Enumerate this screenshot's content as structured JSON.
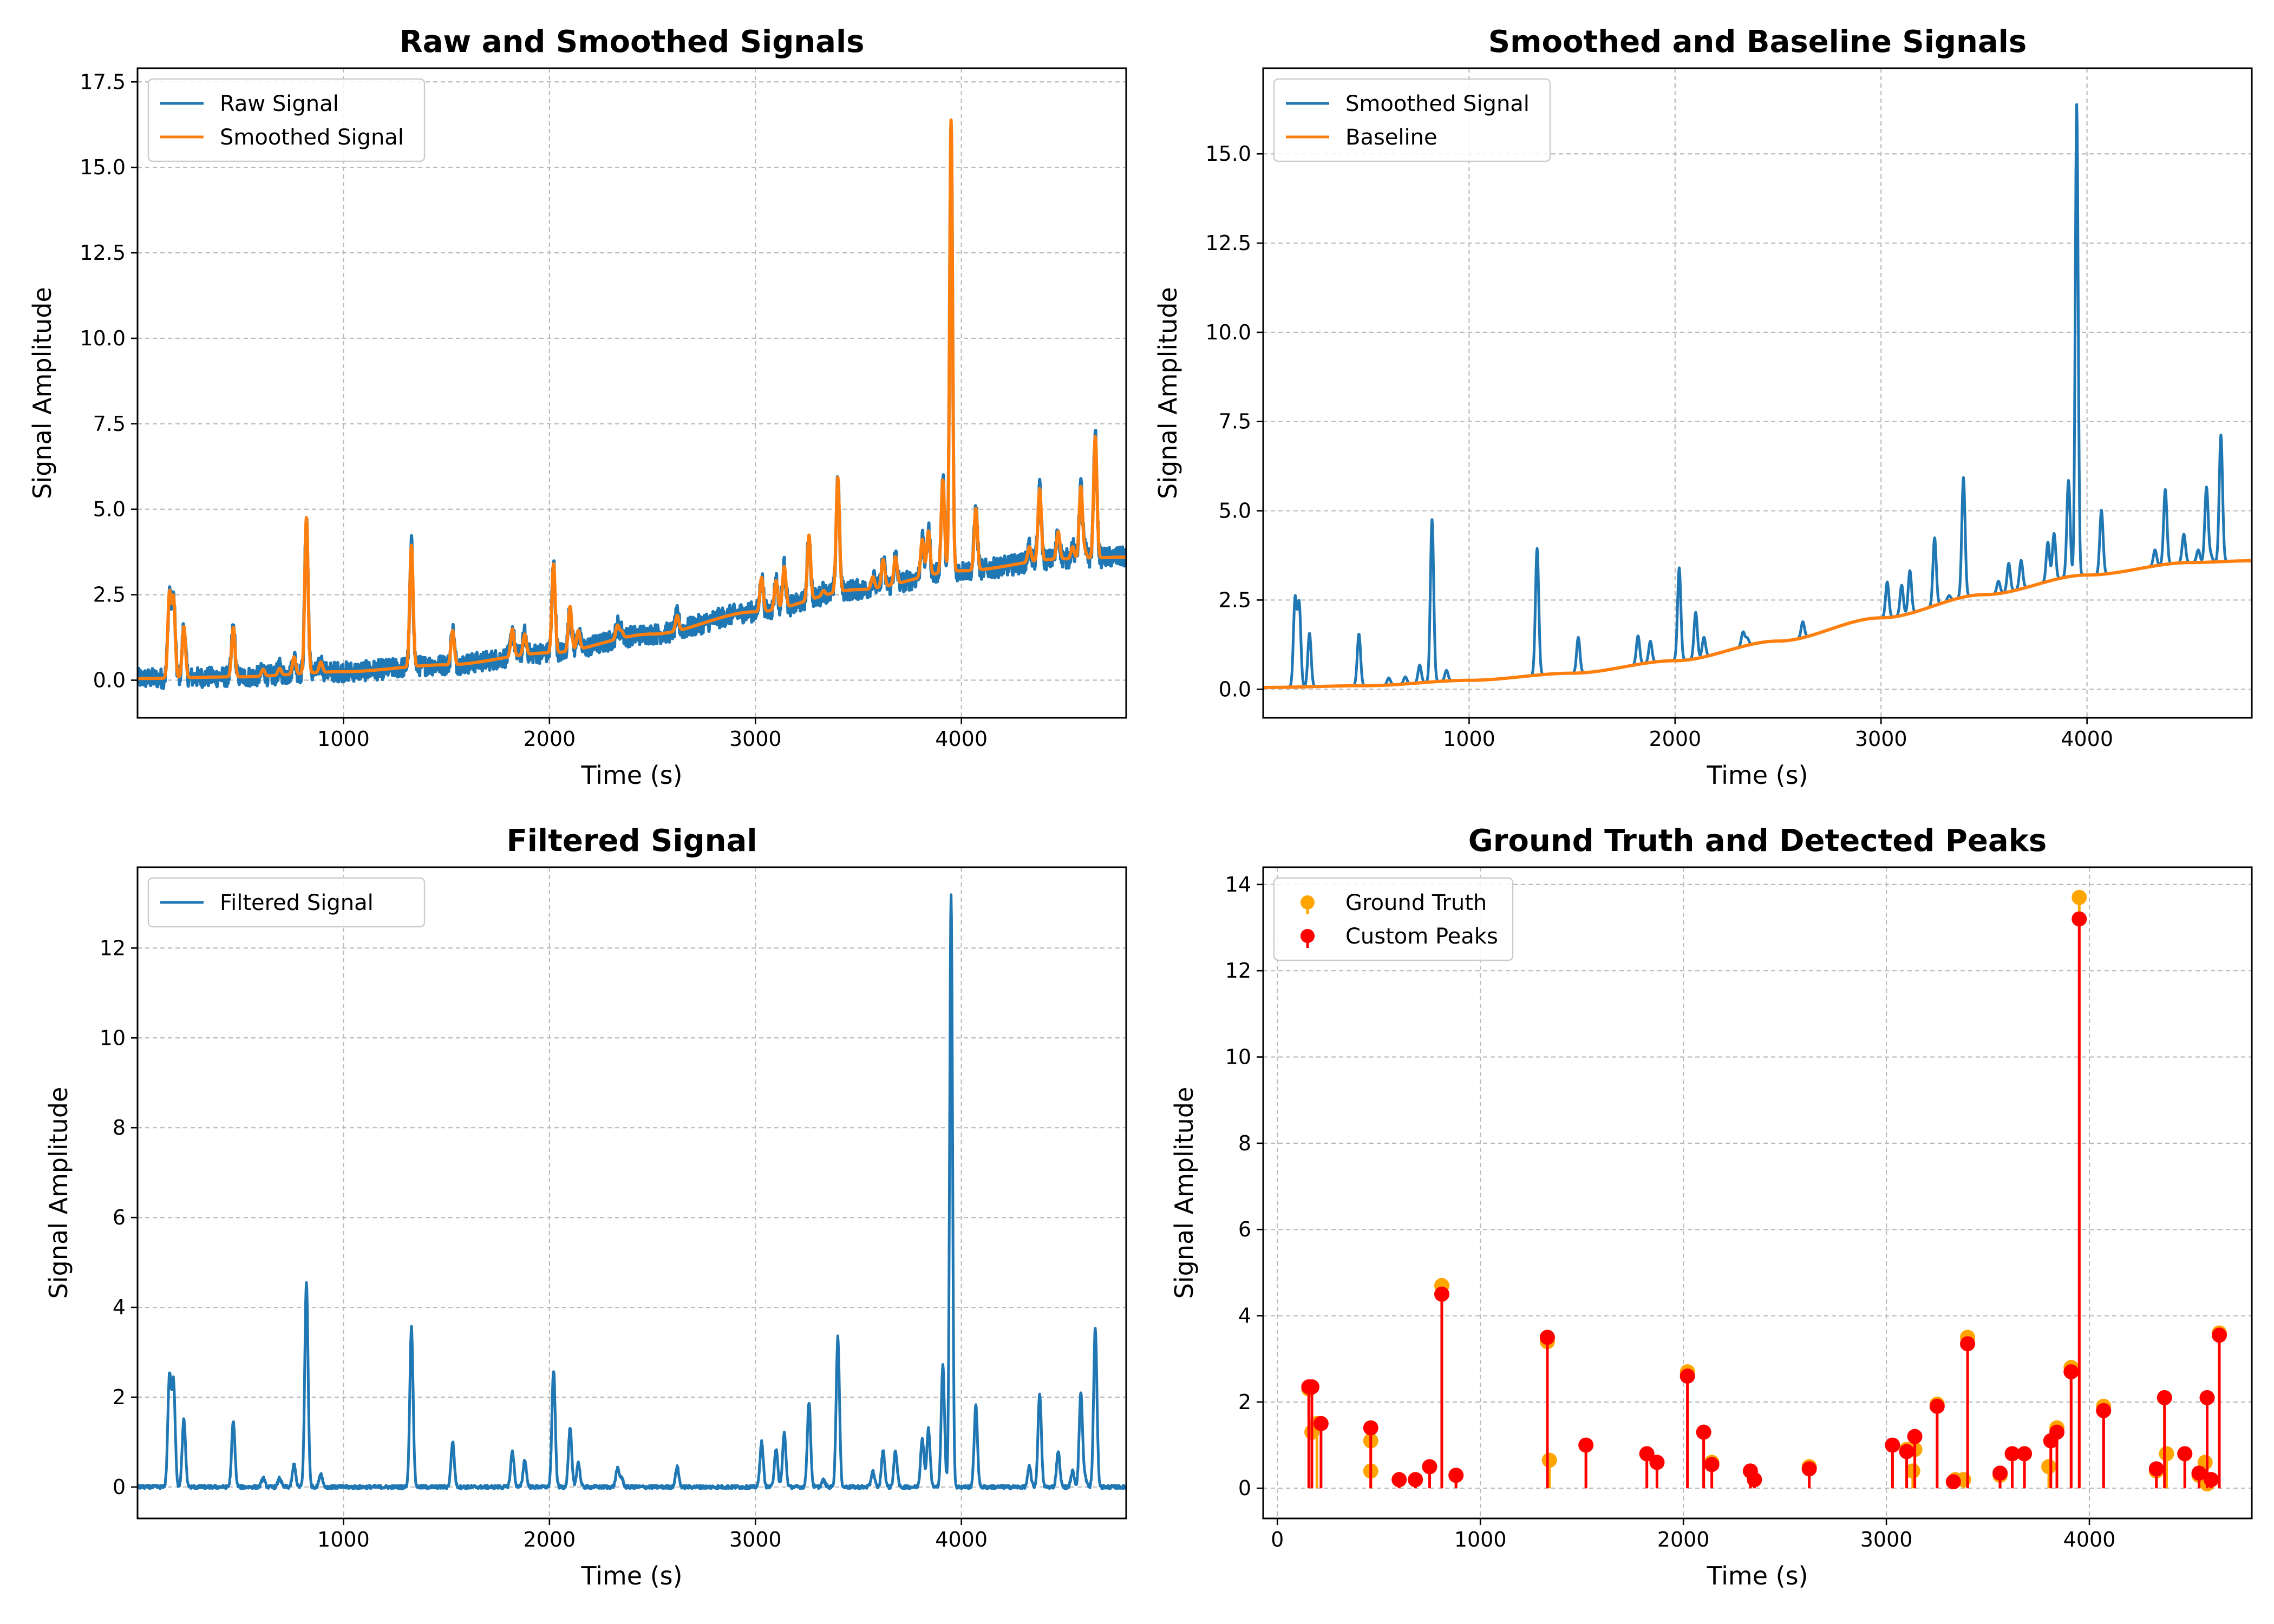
{
  "chart_data": [
    {
      "type": "line",
      "title": "Raw and Smoothed Signals",
      "xlabel": "Time (s)",
      "ylabel": "Signal Amplitude",
      "xlim": [
        0,
        4800
      ],
      "ylim": [
        -1.1,
        17.9
      ],
      "xticks": [
        1000,
        2000,
        3000,
        4000
      ],
      "yticks": [
        0.0,
        2.5,
        5.0,
        7.5,
        10.0,
        12.5,
        15.0,
        17.5
      ],
      "ytick_decimals": 1,
      "grid": true,
      "legend": "top-left",
      "series": [
        {
          "name": "Raw Signal",
          "color": "#1f77b4",
          "noise_band": 0.3
        },
        {
          "name": "Smoothed Signal",
          "color": "#ff7f0e"
        }
      ]
    },
    {
      "type": "line",
      "title": "Smoothed and Baseline Signals",
      "xlabel": "Time (s)",
      "ylabel": "Signal Amplitude",
      "xlim": [
        0,
        4800
      ],
      "ylim": [
        -0.8,
        17.4
      ],
      "xticks": [
        1000,
        2000,
        3000,
        4000
      ],
      "yticks": [
        0.0,
        2.5,
        5.0,
        7.5,
        10.0,
        12.5,
        15.0
      ],
      "ytick_decimals": 1,
      "grid": true,
      "legend": "top-left",
      "series": [
        {
          "name": "Smoothed Signal",
          "color": "#1f77b4"
        },
        {
          "name": "Baseline",
          "color": "#ff7f0e"
        }
      ]
    },
    {
      "type": "line",
      "title": "Filtered Signal",
      "xlabel": "Time (s)",
      "ylabel": "Signal Amplitude",
      "xlim": [
        0,
        4800
      ],
      "ylim": [
        -0.7,
        13.8
      ],
      "xticks": [
        1000,
        2000,
        3000,
        4000
      ],
      "yticks": [
        0,
        2,
        4,
        6,
        8,
        10,
        12
      ],
      "ytick_decimals": 0,
      "grid": true,
      "legend": "top-left",
      "series": [
        {
          "name": "Filtered Signal",
          "color": "#1f77b4"
        }
      ]
    },
    {
      "type": "scatter",
      "title": "Ground Truth and Detected Peaks",
      "xlabel": "Time (s)",
      "ylabel": "Signal Amplitude",
      "xlim": [
        -70,
        4800
      ],
      "ylim": [
        -0.7,
        14.4
      ],
      "xticks": [
        0,
        1000,
        2000,
        3000,
        4000
      ],
      "yticks": [
        0,
        2,
        4,
        6,
        8,
        10,
        12,
        14
      ],
      "ytick_decimals": 0,
      "grid": true,
      "legend": "top-left",
      "series": [
        {
          "name": "Ground Truth",
          "color": "#ffa500"
        },
        {
          "name": "Custom Peaks",
          "color": "#ff0000"
        }
      ],
      "ground_truth_points": [
        [
          155,
          2.3
        ],
        [
          170,
          1.3
        ],
        [
          195,
          1.5
        ],
        [
          460,
          1.1
        ],
        [
          460,
          0.4
        ],
        [
          600,
          0.2
        ],
        [
          680,
          0.2
        ],
        [
          750,
          0.5
        ],
        [
          810,
          4.7
        ],
        [
          880,
          0.3
        ],
        [
          1330,
          3.4
        ],
        [
          1340,
          0.65
        ],
        [
          1520,
          1.0
        ],
        [
          1820,
          0.8
        ],
        [
          1870,
          0.6
        ],
        [
          2020,
          2.7
        ],
        [
          2100,
          1.3
        ],
        [
          2140,
          0.6
        ],
        [
          2330,
          0.4
        ],
        [
          2350,
          0.2
        ],
        [
          2620,
          0.5
        ],
        [
          3030,
          1.0
        ],
        [
          3100,
          0.9
        ],
        [
          3130,
          0.4
        ],
        [
          3140,
          0.9
        ],
        [
          3250,
          1.95
        ],
        [
          3340,
          0.2
        ],
        [
          3380,
          0.2
        ],
        [
          3400,
          3.5
        ],
        [
          3560,
          0.3
        ],
        [
          3620,
          0.8
        ],
        [
          3680,
          0.8
        ],
        [
          3800,
          0.5
        ],
        [
          3810,
          1.1
        ],
        [
          3840,
          1.4
        ],
        [
          3910,
          2.8
        ],
        [
          3950,
          13.7
        ],
        [
          4070,
          1.9
        ],
        [
          4330,
          0.4
        ],
        [
          4370,
          2.1
        ],
        [
          4380,
          0.8
        ],
        [
          4470,
          0.8
        ],
        [
          4540,
          0.3
        ],
        [
          4570,
          0.6
        ],
        [
          4580,
          0.1
        ],
        [
          4600,
          0.2
        ],
        [
          4640,
          3.6
        ]
      ],
      "custom_peaks": [
        [
          155,
          2.35
        ],
        [
          170,
          2.35
        ],
        [
          215,
          1.5
        ],
        [
          460,
          1.4
        ],
        [
          600,
          0.2
        ],
        [
          680,
          0.2
        ],
        [
          750,
          0.5
        ],
        [
          810,
          4.5
        ],
        [
          880,
          0.3
        ],
        [
          1330,
          3.5
        ],
        [
          1520,
          1.0
        ],
        [
          1820,
          0.8
        ],
        [
          1870,
          0.6
        ],
        [
          2020,
          2.6
        ],
        [
          2100,
          1.3
        ],
        [
          2140,
          0.55
        ],
        [
          2330,
          0.4
        ],
        [
          2350,
          0.2
        ],
        [
          2620,
          0.45
        ],
        [
          3030,
          1.0
        ],
        [
          3100,
          0.85
        ],
        [
          3140,
          1.2
        ],
        [
          3250,
          1.9
        ],
        [
          3330,
          0.15
        ],
        [
          3400,
          3.35
        ],
        [
          3560,
          0.35
        ],
        [
          3620,
          0.8
        ],
        [
          3680,
          0.8
        ],
        [
          3810,
          1.1
        ],
        [
          3840,
          1.3
        ],
        [
          3910,
          2.7
        ],
        [
          3950,
          13.2
        ],
        [
          4070,
          1.8
        ],
        [
          4330,
          0.45
        ],
        [
          4370,
          2.1
        ],
        [
          4470,
          0.8
        ],
        [
          4540,
          0.35
        ],
        [
          4580,
          2.1
        ],
        [
          4600,
          0.2
        ],
        [
          4640,
          3.55
        ]
      ]
    }
  ],
  "peaks": [
    [
      155,
      2.45
    ],
    [
      175,
      2.3
    ],
    [
      225,
      1.5
    ],
    [
      465,
      1.45
    ],
    [
      610,
      0.2
    ],
    [
      690,
      0.2
    ],
    [
      760,
      0.5
    ],
    [
      820,
      4.55
    ],
    [
      890,
      0.3
    ],
    [
      1330,
      3.55
    ],
    [
      1530,
      1.0
    ],
    [
      1820,
      0.8
    ],
    [
      1880,
      0.6
    ],
    [
      2020,
      2.6
    ],
    [
      2100,
      1.3
    ],
    [
      2140,
      0.55
    ],
    [
      2330,
      0.4
    ],
    [
      2350,
      0.2
    ],
    [
      2620,
      0.45
    ],
    [
      3030,
      1.0
    ],
    [
      3100,
      0.85
    ],
    [
      3140,
      1.2
    ],
    [
      3260,
      1.9
    ],
    [
      3330,
      0.15
    ],
    [
      3400,
      3.35
    ],
    [
      3570,
      0.35
    ],
    [
      3620,
      0.8
    ],
    [
      3680,
      0.8
    ],
    [
      3810,
      1.1
    ],
    [
      3840,
      1.3
    ],
    [
      3910,
      2.7
    ],
    [
      3950,
      13.2
    ],
    [
      4070,
      1.8
    ],
    [
      4330,
      0.45
    ],
    [
      4380,
      2.1
    ],
    [
      4470,
      0.8
    ],
    [
      4540,
      0.35
    ],
    [
      4580,
      2.1
    ],
    [
      4600,
      0.2
    ],
    [
      4650,
      3.55
    ]
  ],
  "baseline_knots": [
    [
      0,
      0.05
    ],
    [
      500,
      0.1
    ],
    [
      1000,
      0.25
    ],
    [
      1500,
      0.45
    ],
    [
      2000,
      0.8
    ],
    [
      2500,
      1.35
    ],
    [
      3000,
      2.0
    ],
    [
      3500,
      2.65
    ],
    [
      4000,
      3.2
    ],
    [
      4500,
      3.55
    ],
    [
      4800,
      3.6
    ]
  ]
}
